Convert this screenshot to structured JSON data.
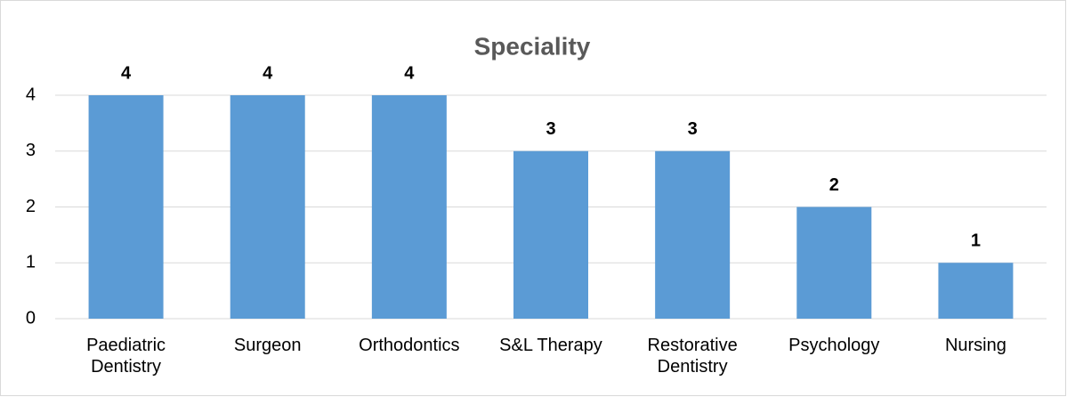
{
  "chart_data": {
    "type": "bar",
    "title": "Speciality",
    "categories": [
      "Paediatric Dentistry",
      "Surgeon",
      "Orthodontics",
      "S&L Therapy",
      "Restorative Dentistry",
      "Psychology",
      "Nursing"
    ],
    "values": [
      4,
      4,
      4,
      3,
      3,
      2,
      1
    ],
    "color": "#5b9bd5",
    "ylim": [
      0,
      4
    ],
    "yticks": [
      0,
      1,
      2,
      3,
      4
    ],
    "grid": true
  }
}
